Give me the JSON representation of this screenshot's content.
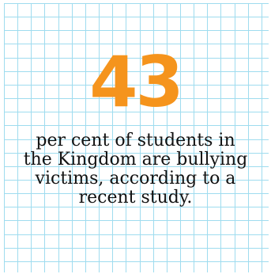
{
  "stat": {
    "number": "43",
    "caption_lines": [
      "per cent of students in",
      "the Kingdom are bullying",
      "victims, according to a",
      "recent study."
    ]
  },
  "colors": {
    "number": "#f5941d",
    "grid": "#9fdcef",
    "text": "#111111",
    "background": "#ffffff"
  }
}
